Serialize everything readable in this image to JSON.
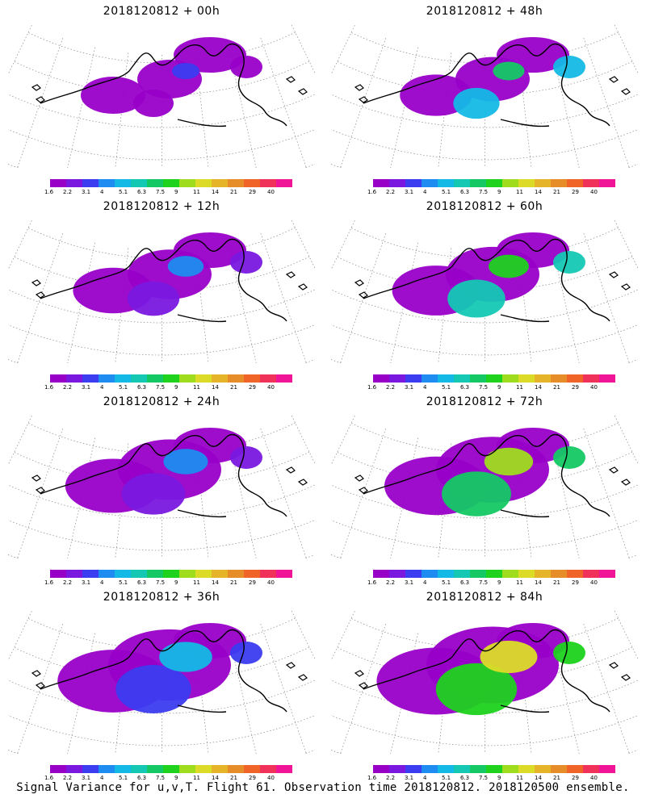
{
  "colorbar": {
    "colors": [
      "#9800c8",
      "#7a18e0",
      "#3c3cf0",
      "#1e8cf0",
      "#14b9e6",
      "#14c8b4",
      "#14c864",
      "#1ed21e",
      "#a0dc1e",
      "#dcdc28",
      "#e6b428",
      "#e68c28",
      "#f06428",
      "#f0325a",
      "#f01496"
    ],
    "labels": [
      "1.6",
      "2.2",
      "3.1",
      "4",
      "5.1",
      "6.3",
      "7.5",
      "9",
      "11",
      "14",
      "21",
      "29",
      "40"
    ]
  },
  "panels": [
    {
      "title": "2018120812 + 00h"
    },
    {
      "title": "2018120812 + 48h"
    },
    {
      "title": "2018120812 + 12h"
    },
    {
      "title": "2018120812 + 60h"
    },
    {
      "title": "2018120812 + 24h"
    },
    {
      "title": "2018120812 + 72h"
    },
    {
      "title": "2018120812 + 36h"
    },
    {
      "title": "2018120812 + 84h"
    }
  ],
  "footer": "Signal Variance for u,v,T. Flight 61. Observation time 2018120812. 2018120500 ensemble."
}
